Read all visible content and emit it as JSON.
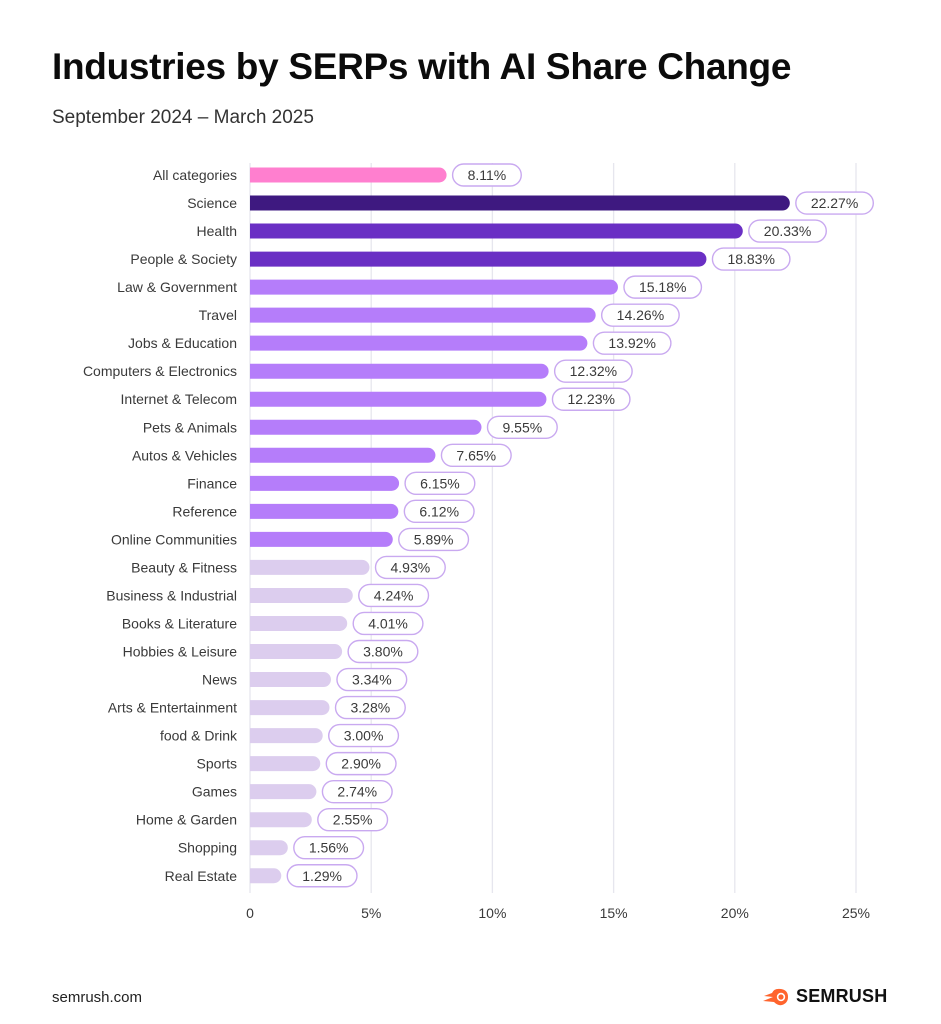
{
  "header": {
    "title": "Industries by SERPs with AI Share Change",
    "subtitle": "September 2024 – March 2025"
  },
  "footer": {
    "source": "semrush.com",
    "brand": "SEMRUSH",
    "brand_icon": "semrush-fireball-icon",
    "brand_color": "#ff642d"
  },
  "colors": {
    "total": "#ff7fcf",
    "top1": "#3e1980",
    "top2": "#6a2fc4",
    "high": "#b57dfa",
    "low": "#dccdee",
    "pill_border": "#c9a9f0",
    "grid": "#e6e6ee"
  },
  "chart_data": {
    "type": "bar",
    "orientation": "horizontal",
    "title": "Industries by SERPs with AI Share Change",
    "subtitle": "September 2024 – March 2025",
    "xlabel": "",
    "ylabel": "",
    "xlim": [
      0,
      25
    ],
    "x_ticks": [
      0,
      5,
      10,
      15,
      20,
      25
    ],
    "x_tick_labels": [
      "0",
      "5%",
      "10%",
      "15%",
      "20%",
      "25%"
    ],
    "grid": "vertical",
    "unit": "%",
    "categories": [
      "All categories",
      "Science",
      "Health",
      "People & Society",
      "Law & Government",
      "Travel",
      "Jobs & Education",
      "Computers & Electronics",
      "Internet & Telecom",
      "Pets & Animals",
      "Autos & Vehicles",
      "Finance",
      "Reference",
      "Online Communities",
      "Beauty & Fitness",
      "Business &  Industrial",
      "Books & Literature",
      "Hobbies & Leisure",
      "News",
      "Arts & Entertainment",
      "food & Drink",
      "Sports",
      "Games",
      "Home & Garden",
      "Shopping",
      "Real Estate"
    ],
    "values": [
      8.11,
      22.27,
      20.33,
      18.83,
      15.18,
      14.26,
      13.92,
      12.32,
      12.23,
      9.55,
      7.65,
      6.15,
      6.12,
      5.89,
      4.93,
      4.24,
      4.01,
      3.8,
      3.34,
      3.28,
      3.0,
      2.9,
      2.74,
      2.55,
      1.56,
      1.29
    ],
    "value_labels": [
      "8.11%",
      "22.27%",
      "20.33%",
      "18.83%",
      "15.18%",
      "14.26%",
      "13.92%",
      "12.32%",
      "12.23%",
      "9.55%",
      "7.65%",
      "6.15%",
      "6.12%",
      "5.89%",
      "4.93%",
      "4.24%",
      "4.01%",
      "3.80%",
      "3.34%",
      "3.28%",
      "3.00%",
      "2.90%",
      "2.74%",
      "2.55%",
      "1.56%",
      "1.29%"
    ],
    "bar_color_groups": [
      "total",
      "top1",
      "top2",
      "top2",
      "high",
      "high",
      "high",
      "high",
      "high",
      "high",
      "high",
      "high",
      "high",
      "high",
      "low",
      "low",
      "low",
      "low",
      "low",
      "low",
      "low",
      "low",
      "low",
      "low",
      "low",
      "low"
    ]
  }
}
